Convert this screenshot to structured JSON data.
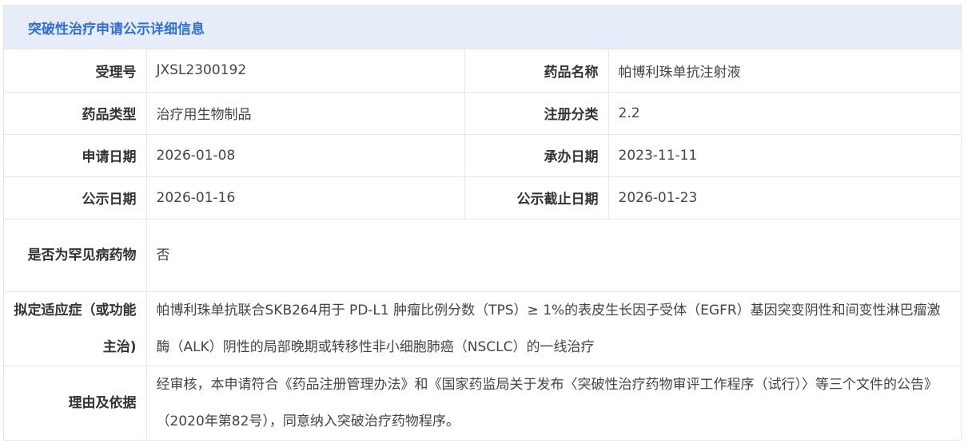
{
  "header": {
    "title": "突破性治疗申请公示详细信息"
  },
  "fields": {
    "accept_no": {
      "label": "受理号",
      "value": "JXSL2300192"
    },
    "drug_name": {
      "label": "药品名称",
      "value": "帕博利珠单抗注射液"
    },
    "drug_type": {
      "label": "药品类型",
      "value": "治疗用生物制品"
    },
    "reg_class": {
      "label": "注册分类",
      "value": "2.2"
    },
    "apply_date": {
      "label": "申请日期",
      "value": "2026-01-08"
    },
    "handle_date": {
      "label": "承办日期",
      "value": "2023-11-11"
    },
    "publish_date": {
      "label": "公示日期",
      "value": "2026-01-16"
    },
    "publish_end": {
      "label": "公示截止日期",
      "value": "2026-01-23"
    },
    "rare_disease": {
      "label": "是否为罕见病药物",
      "value": "否"
    },
    "indication": {
      "label": "拟定适应症（或功能主治)",
      "value": "帕博利珠单抗联合SKB264用于 PD-L1 肿瘤比例分数（TPS）≥ 1%的表皮生长因子受体（EGFR）基因突变阴性和间变性淋巴瘤激酶（ALK）阴性的局部晚期或转移性非小细胞肺癌（NSCLC）的一线治疗"
    },
    "reason": {
      "label": "理由及依据",
      "value": "经审核，本申请符合《药品注册管理办法》和《国家药监局关于发布〈突破性治疗药物审评工作程序（试行）〉等三个文件的公告》（2020年第82号），同意纳入突破治疗药物程序。"
    }
  }
}
